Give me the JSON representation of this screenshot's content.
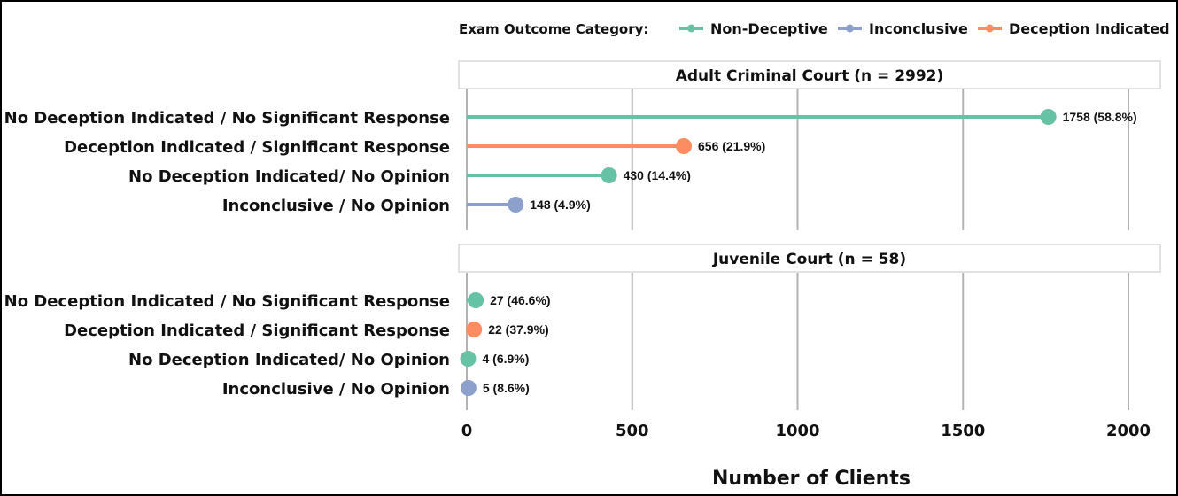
{
  "chart_data": {
    "type": "lollipop",
    "xlabel": "Number of Clients",
    "xlim": [
      0,
      2000
    ],
    "xticks": [
      0,
      500,
      1000,
      1500,
      2000
    ],
    "grid": "vertical",
    "legend": {
      "title": "Exam Outcome Category:",
      "placement": "top-right",
      "entries": [
        {
          "name": "Non-Deceptive",
          "color": "#66c2a5"
        },
        {
          "name": "Inconclusive",
          "color": "#8da0cb"
        },
        {
          "name": "Deception Indicated",
          "color": "#fc8d62"
        }
      ]
    },
    "panels": [
      {
        "title": "Adult Criminal Court (n = 2992)",
        "rows": [
          {
            "label": "No Deception Indicated / No Significant Response",
            "value": 1758,
            "text": "1758 (58.8%)",
            "category": "Non-Deceptive"
          },
          {
            "label": "Deception Indicated / Significant Response",
            "value": 656,
            "text": "656 (21.9%)",
            "category": "Deception Indicated"
          },
          {
            "label": "No Deception Indicated/ No Opinion",
            "value": 430,
            "text": "430 (14.4%)",
            "category": "Non-Deceptive"
          },
          {
            "label": "Inconclusive / No Opinion",
            "value": 148,
            "text": "148 (4.9%)",
            "category": "Inconclusive"
          }
        ]
      },
      {
        "title": "Juvenile Court (n = 58)",
        "rows": [
          {
            "label": "No Deception Indicated / No Significant Response",
            "value": 27,
            "text": "27 (46.6%)",
            "category": "Non-Deceptive"
          },
          {
            "label": "Deception Indicated / Significant Response",
            "value": 22,
            "text": "22 (37.9%)",
            "category": "Deception Indicated"
          },
          {
            "label": "No Deception Indicated/ No Opinion",
            "value": 4,
            "text": "4 (6.9%)",
            "category": "Non-Deceptive"
          },
          {
            "label": "Inconclusive / No Opinion",
            "value": 5,
            "text": "5 (8.6%)",
            "category": "Inconclusive"
          }
        ]
      }
    ]
  }
}
